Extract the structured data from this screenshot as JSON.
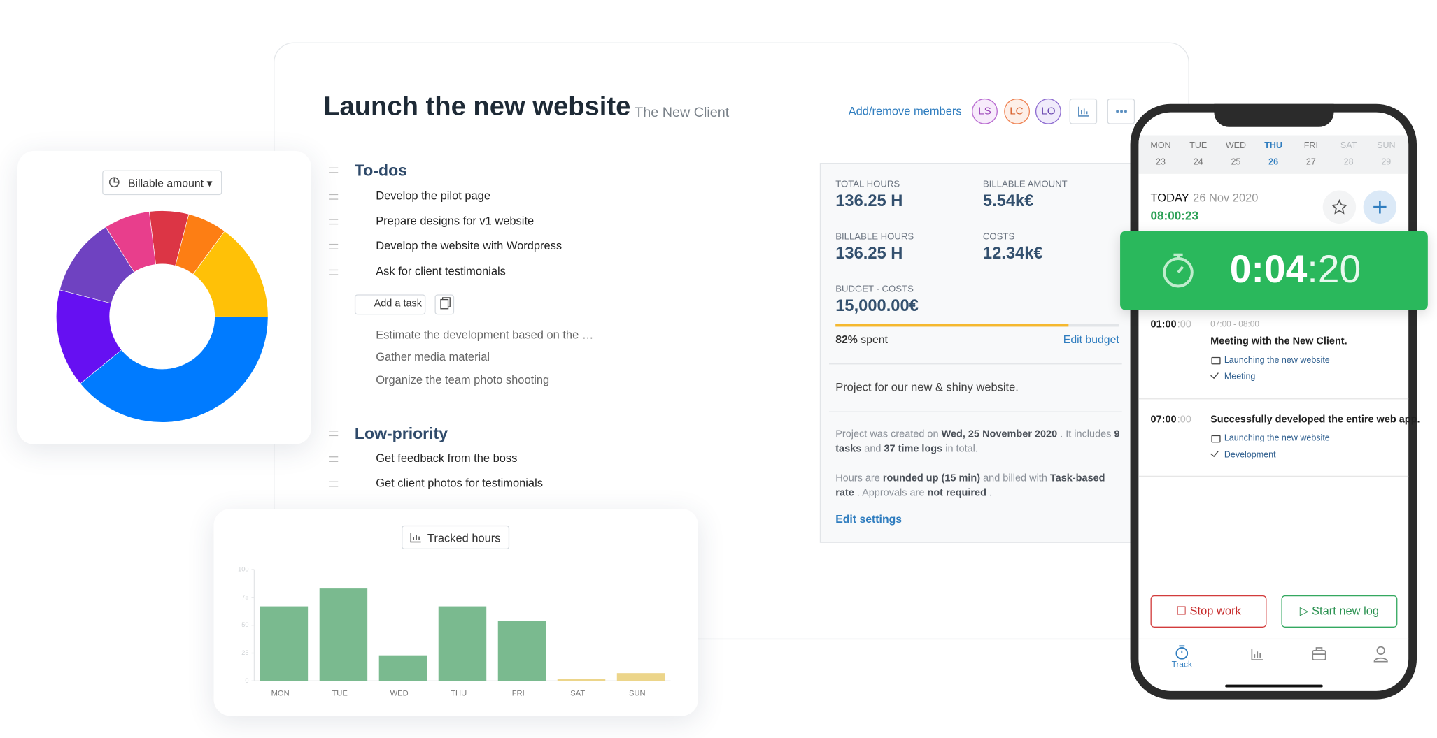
{
  "project": {
    "title": "Launch the new website",
    "client": "The New Client",
    "add_members": "Add/remove members",
    "members": [
      "LS",
      "LC",
      "LO"
    ]
  },
  "todos": {
    "title": "To-dos",
    "open": [
      "Develop the pilot page",
      "Prepare designs for v1 website",
      "Develop the website with Wordpress",
      "Ask for client testimonials"
    ],
    "add_task": "Add a task",
    "done": [
      "Estimate the development based on the …",
      "Gather media material",
      "Organize the team photo shooting"
    ]
  },
  "low_priority": {
    "title": "Low-priority",
    "open": [
      "Get feedback from the boss",
      "Get client photos for testimonials"
    ]
  },
  "stats": {
    "items": [
      {
        "label": "TOTAL HOURS",
        "value": "136.25 H"
      },
      {
        "label": "BILLABLE AMOUNT",
        "value": "5.54k€"
      },
      {
        "label": "BILLABLE HOURS",
        "value": "136.25 H"
      },
      {
        "label": "COSTS",
        "value": "12.34k€"
      },
      {
        "label": "BUDGET - COSTS",
        "value": "15,000.00€"
      }
    ],
    "budget_spent": {
      "value": 82,
      "label": "82%"
    },
    "spent": "spent",
    "edit_budget": "Edit budget",
    "description": "Project for our new & shiny website.",
    "info": [
      "Project was created on ",
      "Wed, 25 November 2020",
      " . It includes ",
      "9 tasks",
      " and ",
      "37 time logs",
      " in total."
    ],
    "hours": [
      "Hours are ",
      "rounded up (15 min)",
      " and billed with ",
      "Task-based rate",
      " . Approvals are ",
      "not required",
      " ."
    ],
    "edit_settings": "Edit settings"
  },
  "phone": {
    "days": [
      {
        "name": "MON",
        "date": "23"
      },
      {
        "name": "TUE",
        "date": "24"
      },
      {
        "name": "WED",
        "date": "25"
      },
      {
        "name": "THU",
        "date": "26"
      },
      {
        "name": "FRI",
        "date": "27"
      },
      {
        "name": "SAT",
        "date": "28"
      },
      {
        "name": "SUN",
        "date": "29"
      }
    ],
    "today": "TODAY",
    "date": "26 Nov 2020",
    "total": "08:00:23",
    "timer_main": "0:04",
    "timer_seconds": ":20",
    "logs": [
      {
        "time": "01:00",
        "seconds": ":00",
        "range": "07:00 - 08:00",
        "title": "Meeting with the New Client.",
        "project": "Launching the new website",
        "tag": "Meeting"
      },
      {
        "time": "07:00",
        "seconds": ":00",
        "title": "Successfully developed the entire web app.",
        "project": "Launching the new website",
        "tag": "Development"
      }
    ],
    "stop": "Stop work",
    "start": "Start new log",
    "tab": "Track"
  },
  "chart_data": [
    {
      "type": "pie",
      "title": "Billable amount",
      "donut": true,
      "values": [
        6,
        6,
        15,
        39,
        15,
        12,
        7
      ],
      "colors": [
        "#dc3545",
        "#fd7e14",
        "#ffc107",
        "#007bff",
        "#6610f2",
        "#6f42c1",
        "#e83e8c"
      ]
    },
    {
      "type": "bar",
      "title": "Tracked hours",
      "categories": [
        "MON",
        "TUE",
        "WED",
        "THU",
        "FRI",
        "SAT",
        "SUN"
      ],
      "values": [
        67,
        83,
        23,
        67,
        54,
        2,
        7
      ],
      "colors": [
        "#7aba8f",
        "#7aba8f",
        "#7aba8f",
        "#7aba8f",
        "#7aba8f",
        "#ecd58a",
        "#ecd58a"
      ],
      "ylim": [
        0,
        100
      ],
      "yticks": [
        0,
        25,
        50,
        75,
        100
      ]
    }
  ]
}
